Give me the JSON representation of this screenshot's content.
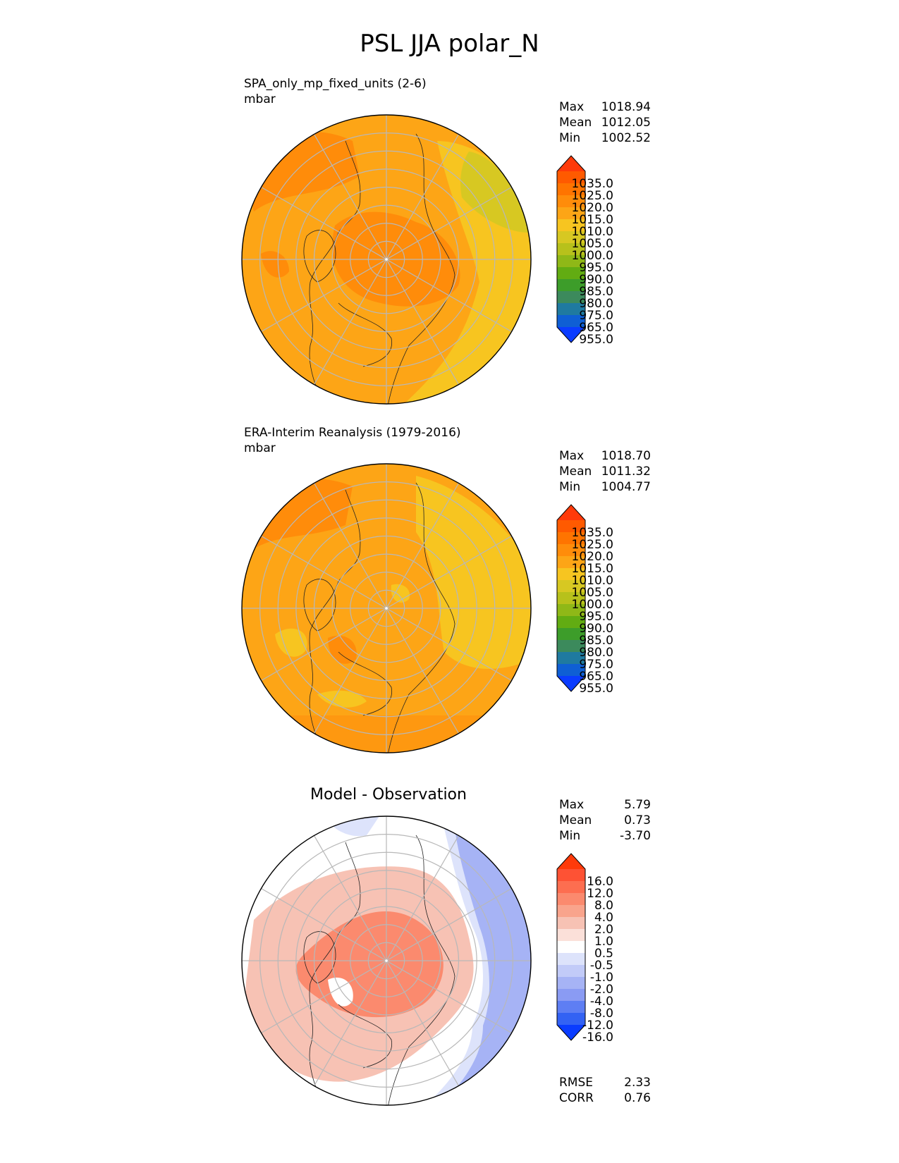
{
  "page_title": "PSL JJA polar_N",
  "chart_data": [
    {
      "type": "heatmap",
      "projection": "north-polar-stereographic",
      "title": "SPA_only_mp_fixed_units (2-6)",
      "units": "mbar",
      "stats": [
        {
          "label": "Max",
          "value": "1018.94"
        },
        {
          "label": "Mean",
          "value": "1012.05"
        },
        {
          "label": "Min",
          "value": "1002.52"
        }
      ],
      "colorbar": {
        "levels": [
          "1035.0",
          "1025.0",
          "1020.0",
          "1015.0",
          "1010.0",
          "1005.0",
          "1000.0",
          "995.0",
          "990.0",
          "985.0",
          "980.0",
          "975.0",
          "965.0",
          "955.0"
        ],
        "colors": [
          "#ff3a0a",
          "#ff5a00",
          "#ff7400",
          "#ff8c0a",
          "#fda516",
          "#f7c520",
          "#d7c822",
          "#b7c11b",
          "#8fb817",
          "#62ac12",
          "#3d9d2a",
          "#3c8a5c",
          "#1f7aa0",
          "#0f5fd4",
          "#0a3cff"
        ],
        "extend": "both"
      },
      "field": {
        "base": "#fda516",
        "regions": [
          "#ff8c0a",
          "#f7c520",
          "#d7c822"
        ]
      }
    },
    {
      "type": "heatmap",
      "projection": "north-polar-stereographic",
      "title": "ERA-Interim Reanalysis (1979-2016)",
      "units": "mbar",
      "stats": [
        {
          "label": "Max",
          "value": "1018.70"
        },
        {
          "label": "Mean",
          "value": "1011.32"
        },
        {
          "label": "Min",
          "value": "1004.77"
        }
      ],
      "colorbar": {
        "levels": [
          "1035.0",
          "1025.0",
          "1020.0",
          "1015.0",
          "1010.0",
          "1005.0",
          "1000.0",
          "995.0",
          "990.0",
          "985.0",
          "980.0",
          "975.0",
          "965.0",
          "955.0"
        ],
        "colors": [
          "#ff3a0a",
          "#ff5a00",
          "#ff7400",
          "#ff8c0a",
          "#fda516",
          "#f7c520",
          "#d7c822",
          "#b7c11b",
          "#8fb817",
          "#62ac12",
          "#3d9d2a",
          "#3c8a5c",
          "#1f7aa0",
          "#0f5fd4",
          "#0a3cff"
        ],
        "extend": "both"
      },
      "field": {
        "base": "#fda516",
        "regions": [
          "#ff8c0a",
          "#f7c520"
        ]
      }
    },
    {
      "type": "heatmap",
      "projection": "north-polar-stereographic",
      "title": "Model - Observation",
      "stats": [
        {
          "label": "Max",
          "value": "5.79"
        },
        {
          "label": "Mean",
          "value": "0.73"
        },
        {
          "label": "Min",
          "value": "-3.70"
        }
      ],
      "colorbar": {
        "levels": [
          "16.0",
          "12.0",
          "8.0",
          "4.0",
          "2.0",
          "1.0",
          "0.5",
          "-0.5",
          "-1.0",
          "-2.0",
          "-4.0",
          "-8.0",
          "-12.0",
          "-16.0"
        ],
        "colors": [
          "#ff3a0a",
          "#fe5234",
          "#fd6e50",
          "#fb8a6e",
          "#f9a48c",
          "#f7c2b4",
          "#fbe0d9",
          "#ffffff",
          "#dde3fb",
          "#c2cbf8",
          "#a6b3f5",
          "#8a9bf3",
          "#5e7ef3",
          "#3362f3",
          "#0a3cff"
        ],
        "extend": "both"
      },
      "metrics": [
        {
          "label": "RMSE",
          "value": "2.33"
        },
        {
          "label": "CORR",
          "value": "0.76"
        }
      ],
      "field": {
        "base": "#ffffff",
        "regions": [
          "#f7c2b4",
          "#fb8a6e",
          "#a6b3f5",
          "#dde3fb"
        ]
      }
    }
  ]
}
